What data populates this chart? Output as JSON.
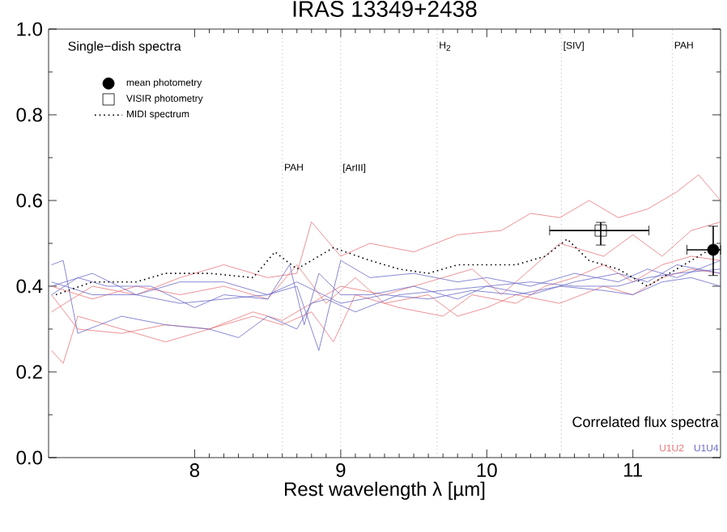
{
  "chart_data": {
    "type": "line",
    "title": "IRAS 13349+2438",
    "xlabel": "Rest wavelength λ [µm]",
    "legend_title": "Single−dish spectra",
    "legend": "top left",
    "annotations": [
      "Correlated flux spectra"
    ],
    "xlim": [
      7.0,
      11.6
    ],
    "xticks": [
      8,
      9,
      10,
      11
    ],
    "ylim": [
      0.0,
      1.0
    ],
    "yticks": [
      {
        "value": 0.0,
        "label": "0.0"
      },
      {
        "value": 0.2,
        "label": "0.2"
      },
      {
        "value": 0.4,
        "label": "0.4"
      },
      {
        "value": 0.6,
        "label": "0.6"
      },
      {
        "value": 0.8,
        "label": "0.8"
      },
      {
        "value": 1.0,
        "label": "1.0"
      }
    ],
    "ref_lines": [
      {
        "axis": "x",
        "value": 8.6,
        "label": "PAH",
        "color": "#888888",
        "line_style": "dotted"
      },
      {
        "axis": "x",
        "value": 9.0,
        "label": "[ArIII]",
        "color": "#888888",
        "line_style": "dotted"
      },
      {
        "axis": "x",
        "value": 9.66,
        "label": "H$_{2}$",
        "color": "#888888",
        "line_style": "dotted"
      },
      {
        "axis": "x",
        "value": 10.51,
        "label": "[SIV]",
        "color": "#888888",
        "line_style": "dotted"
      },
      {
        "axis": "x",
        "value": 11.27,
        "label": "PAH",
        "color": "#888888",
        "line_style": "dotted"
      }
    ],
    "series": [
      {
        "name": "U1U2",
        "color": "#e8767a",
        "x": [
          7.02,
          7.3,
          7.6,
          7.9,
          8.2,
          8.5,
          8.7,
          8.8,
          9.0,
          9.2,
          9.5,
          9.8,
          10.1,
          10.3,
          10.5,
          10.7,
          10.9,
          11.1,
          11.3,
          11.45,
          11.6
        ],
        "values": [
          0.34,
          0.4,
          0.38,
          0.42,
          0.45,
          0.42,
          0.43,
          0.55,
          0.47,
          0.5,
          0.48,
          0.52,
          0.53,
          0.57,
          0.56,
          0.6,
          0.56,
          0.58,
          0.62,
          0.66,
          0.6
        ]
      },
      {
        "color": "#e8767a",
        "x": [
          7.02,
          7.1,
          7.2,
          7.5,
          7.8,
          8.1,
          8.4,
          8.6,
          8.9,
          9.0,
          9.3,
          9.6,
          9.9,
          10.1,
          10.3,
          10.5,
          10.8,
          11.0,
          11.2,
          11.4,
          11.6
        ],
        "values": [
          0.25,
          0.22,
          0.33,
          0.3,
          0.27,
          0.3,
          0.34,
          0.32,
          0.38,
          0.4,
          0.38,
          0.41,
          0.44,
          0.38,
          0.44,
          0.5,
          0.47,
          0.52,
          0.47,
          0.53,
          0.55
        ]
      },
      {
        "color": "#e8767a",
        "x": [
          7.02,
          7.2,
          7.5,
          7.8,
          8.1,
          8.4,
          8.6,
          8.8,
          8.95,
          9.1,
          9.4,
          9.7,
          9.9,
          10.2,
          10.4,
          10.6,
          10.8,
          11.0,
          11.2,
          11.4,
          11.6
        ],
        "values": [
          0.38,
          0.3,
          0.29,
          0.31,
          0.3,
          0.33,
          0.31,
          0.34,
          0.27,
          0.38,
          0.35,
          0.33,
          0.38,
          0.36,
          0.4,
          0.42,
          0.45,
          0.41,
          0.45,
          0.47,
          0.46
        ]
      },
      {
        "color": "#e8767a",
        "x": [
          7.02,
          7.3,
          7.6,
          7.9,
          8.2,
          8.5,
          8.7,
          8.9,
          9.1,
          9.3,
          9.6,
          9.8,
          10.0,
          10.2,
          10.5,
          10.8,
          11.0,
          11.2,
          11.4,
          11.6
        ],
        "values": [
          0.4,
          0.37,
          0.4,
          0.38,
          0.4,
          0.37,
          0.45,
          0.36,
          0.42,
          0.36,
          0.38,
          0.33,
          0.35,
          0.38,
          0.36,
          0.4,
          0.38,
          0.42,
          0.44,
          0.43
        ]
      },
      {
        "name": "U1U4",
        "color": "#6a6ac8",
        "x": [
          7.02,
          7.1,
          7.2,
          7.5,
          7.8,
          8.1,
          8.3,
          8.5,
          8.7,
          8.8,
          8.9,
          9.1,
          9.4,
          9.7,
          10.0,
          10.3,
          10.6,
          10.9,
          11.1,
          11.3,
          11.6
        ],
        "values": [
          0.45,
          0.46,
          0.29,
          0.33,
          0.31,
          0.3,
          0.28,
          0.33,
          0.3,
          0.36,
          0.37,
          0.34,
          0.38,
          0.39,
          0.4,
          0.38,
          0.41,
          0.43,
          0.41,
          0.45,
          0.43
        ]
      },
      {
        "color": "#6a6ac8",
        "x": [
          7.02,
          7.2,
          7.4,
          7.7,
          8.0,
          8.2,
          8.5,
          8.65,
          8.75,
          8.85,
          9.0,
          9.2,
          9.5,
          9.8,
          10.0,
          10.3,
          10.6,
          10.9,
          11.1,
          11.3,
          11.6
        ],
        "values": [
          0.38,
          0.42,
          0.4,
          0.4,
          0.35,
          0.38,
          0.37,
          0.45,
          0.31,
          0.43,
          0.38,
          0.38,
          0.4,
          0.37,
          0.4,
          0.41,
          0.4,
          0.4,
          0.42,
          0.43,
          0.44
        ]
      },
      {
        "color": "#6a6ac8",
        "x": [
          7.02,
          7.3,
          7.6,
          7.9,
          8.2,
          8.5,
          8.7,
          8.85,
          9.0,
          9.2,
          9.5,
          9.8,
          10.0,
          10.3,
          10.6,
          10.9,
          11.1,
          11.3,
          11.6
        ],
        "values": [
          0.4,
          0.43,
          0.38,
          0.41,
          0.41,
          0.38,
          0.4,
          0.25,
          0.46,
          0.42,
          0.43,
          0.41,
          0.42,
          0.4,
          0.43,
          0.41,
          0.44,
          0.42,
          0.46
        ]
      },
      {
        "color": "#6a6ac8",
        "x": [
          7.02,
          7.3,
          7.6,
          7.9,
          8.2,
          8.5,
          8.7,
          9.0,
          9.3,
          9.6,
          9.9,
          10.2,
          10.5,
          10.8,
          11.0,
          11.2,
          11.4,
          11.6
        ],
        "values": [
          0.41,
          0.38,
          0.38,
          0.36,
          0.37,
          0.38,
          0.41,
          0.36,
          0.38,
          0.37,
          0.39,
          0.38,
          0.4,
          0.39,
          0.38,
          0.41,
          0.42,
          0.4
        ]
      },
      {
        "name": "mean photometry",
        "type": "scatter",
        "marker": "circle",
        "color": "#000000",
        "x": [
          11.55
        ],
        "values": [
          0.485
        ],
        "errors": [
          [
            0.425,
            0.54
          ]
        ],
        "xerrors": [
          [
            11.37,
            11.6
          ]
        ]
      },
      {
        "name": "VISIR photometry",
        "type": "scatter",
        "marker": "square",
        "color": "#000000",
        "x": [
          10.78
        ],
        "values": [
          0.53
        ],
        "errors": [
          [
            0.496,
            0.549
          ]
        ],
        "xerrors": [
          [
            10.43,
            11.11
          ]
        ]
      },
      {
        "name": "MIDI spectrum",
        "color": "#000000",
        "line_style": "dotted",
        "x": [
          7.05,
          7.3,
          7.6,
          7.8,
          8.1,
          8.4,
          8.55,
          8.7,
          8.95,
          9.2,
          9.4,
          9.6,
          9.8,
          10.0,
          10.2,
          10.4,
          10.55,
          10.7,
          10.9,
          11.1,
          11.3,
          11.5
        ],
        "values": [
          0.38,
          0.41,
          0.41,
          0.43,
          0.43,
          0.42,
          0.48,
          0.44,
          0.49,
          0.46,
          0.44,
          0.43,
          0.45,
          0.45,
          0.45,
          0.47,
          0.51,
          0.46,
          0.44,
          0.4,
          0.44,
          0.48
        ]
      }
    ]
  }
}
